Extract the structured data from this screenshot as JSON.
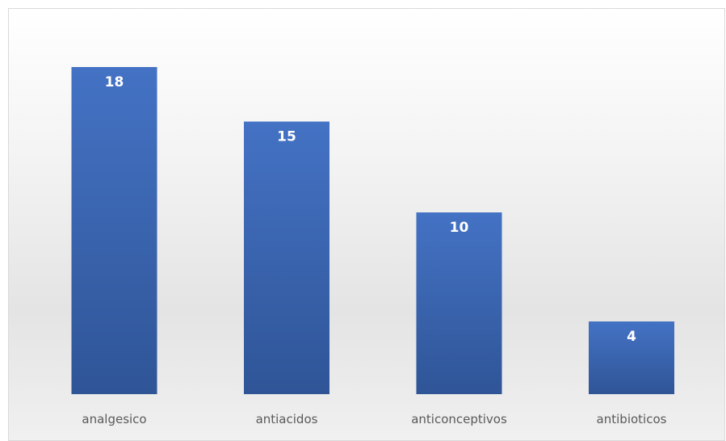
{
  "chart_data": {
    "type": "bar",
    "categories": [
      "analgesico",
      "antiacidos",
      "anticonceptivos",
      "antibioticos"
    ],
    "values": [
      18,
      15,
      10,
      4
    ],
    "title": "",
    "xlabel": "",
    "ylabel": "",
    "ylim": [
      0,
      20
    ],
    "grid": false,
    "legend": "none",
    "data_labels": "inside-end",
    "colors": {
      "bar_top": "#4472C4",
      "bar_bottom": "#2F5597",
      "label_text": "#FFFFFF",
      "category_text": "#595959"
    }
  }
}
